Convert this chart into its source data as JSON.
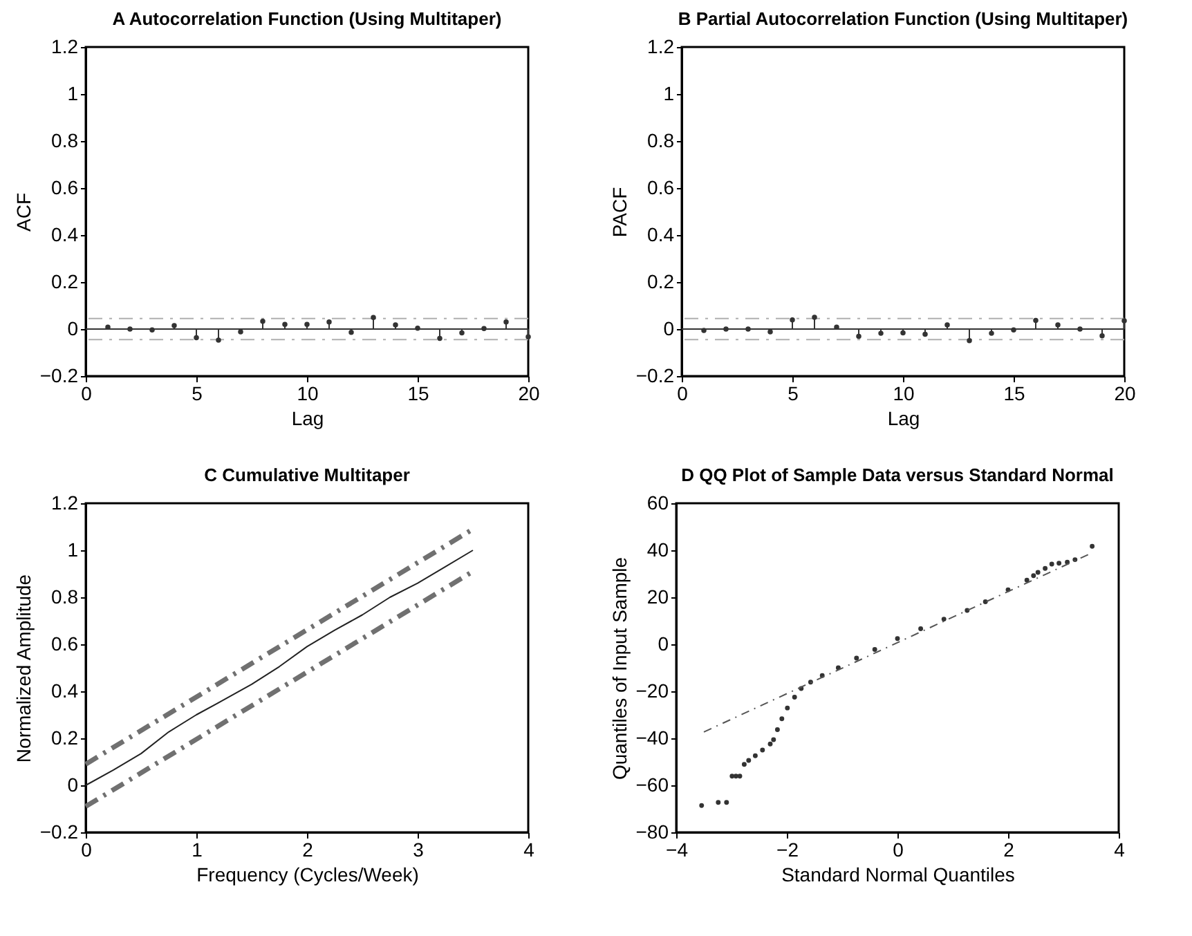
{
  "chart_data": [
    {
      "type": "lollipop",
      "title": "A  Autocorrelation Function (Using Multitaper)",
      "xlabel": "Lag",
      "ylabel": "ACF",
      "x": [
        1,
        2,
        3,
        4,
        5,
        6,
        7,
        8,
        9,
        10,
        11,
        12,
        13,
        14,
        15,
        16,
        17,
        18,
        19,
        20
      ],
      "series": [
        {
          "color": "#333333",
          "values": [
            0.008,
            0,
            -0.004,
            0.015,
            -0.037,
            -0.047,
            -0.012,
            0.033,
            0.02,
            0.02,
            0.03,
            -0.014,
            0.049,
            0.018,
            0.004,
            -0.04,
            -0.016,
            0.002,
            0.03,
            -0.033
          ]
        }
      ],
      "marker": "circle",
      "xlim": [
        0,
        20
      ],
      "xticks": [
        0,
        5,
        10,
        15,
        20
      ],
      "ylim": [
        -0.2,
        1.2
      ],
      "yticks": [
        -0.2,
        0,
        0.2,
        0.4,
        0.6,
        0.8,
        1,
        1.2
      ],
      "ref_lines": [
        {
          "axis": "y",
          "value": 0,
          "color": "#333333",
          "line_style": "solid"
        },
        {
          "axis": "y",
          "value": 0.045,
          "color": "#b0b0b0",
          "line_style": "dashed"
        },
        {
          "axis": "y",
          "value": -0.045,
          "color": "#b0b0b0",
          "line_style": "dashed"
        }
      ]
    },
    {
      "type": "lollipop",
      "title": "B  Partial Autocorrelation Function (Using Multitaper)",
      "xlabel": "Lag",
      "ylabel": "PACF",
      "x": [
        1,
        2,
        3,
        4,
        5,
        6,
        7,
        8,
        9,
        10,
        11,
        12,
        13,
        14,
        15,
        16,
        17,
        18,
        19,
        20
      ],
      "series": [
        {
          "color": "#333333",
          "values": [
            -0.006,
            0,
            0,
            -0.012,
            0.039,
            0.05,
            0.008,
            -0.031,
            -0.018,
            -0.016,
            -0.022,
            0.018,
            -0.049,
            -0.018,
            -0.004,
            0.037,
            0.018,
            0,
            -0.029,
            0.035
          ]
        }
      ],
      "marker": "circle",
      "xlim": [
        0,
        20
      ],
      "xticks": [
        0,
        5,
        10,
        15,
        20
      ],
      "ylim": [
        -0.2,
        1.2
      ],
      "yticks": [
        -0.2,
        0,
        0.2,
        0.4,
        0.6,
        0.8,
        1,
        1.2
      ],
      "ref_lines": [
        {
          "axis": "y",
          "value": 0,
          "color": "#333333",
          "line_style": "solid"
        },
        {
          "axis": "y",
          "value": 0.045,
          "color": "#b0b0b0",
          "line_style": "dashed"
        },
        {
          "axis": "y",
          "value": -0.045,
          "color": "#b0b0b0",
          "line_style": "dashed"
        }
      ]
    },
    {
      "type": "line",
      "title": "C  Cumulative Multitaper",
      "xlabel": "Frequency (Cycles/Week)",
      "ylabel": "Normalized Amplitude",
      "series": [
        {
          "color": "#222222",
          "line_style": "solid",
          "x": [
            0,
            0.25,
            0.5,
            0.75,
            1,
            1.25,
            1.5,
            1.75,
            2,
            2.25,
            2.5,
            2.75,
            3,
            3.25,
            3.5
          ],
          "values": [
            0,
            0.065,
            0.135,
            0.227,
            0.3,
            0.364,
            0.43,
            0.505,
            0.59,
            0.66,
            0.725,
            0.8,
            0.86,
            0.93,
            1
          ]
        },
        {
          "color": "#707070",
          "line_style": "dashed",
          "x": [
            0,
            3.5
          ],
          "values": [
            0.09,
            1.09
          ]
        },
        {
          "color": "#707070",
          "line_style": "dashed",
          "x": [
            0,
            3.5
          ],
          "values": [
            -0.09,
            0.91
          ]
        }
      ],
      "xlim": [
        0,
        4
      ],
      "xticks": [
        0,
        1,
        2,
        3,
        4
      ],
      "ylim": [
        -0.2,
        1.2
      ],
      "yticks": [
        -0.2,
        0,
        0.2,
        0.4,
        0.6,
        0.8,
        1,
        1.2
      ]
    },
    {
      "type": "scatter",
      "title": "D QQ Plot of Sample Data versus Standard Normal",
      "xlabel": "Standard Normal Quantiles",
      "ylabel": "Quantiles of Input Sample",
      "series": [
        {
          "color": "#333333",
          "marker": "circle",
          "x": [
            -3.54,
            -3.24,
            -3.09,
            -2.99,
            -2.92,
            -2.85,
            -2.77,
            -2.69,
            -2.57,
            -2.44,
            -2.3,
            -2.24,
            -2.17,
            -2.09,
            -1.99,
            -1.86,
            -1.74,
            -1.57,
            -1.36,
            -1.07,
            -0.74,
            -0.41,
            0,
            0.42,
            0.84,
            1.26,
            1.59,
            2,
            2.34,
            2.46,
            2.54,
            2.67,
            2.79,
            2.92,
            3.07,
            3.21,
            3.52
          ],
          "values": [
            -68.6,
            -67.3,
            -67.3,
            -56.1,
            -56.1,
            -56.1,
            -51.1,
            -49.4,
            -47.4,
            -45,
            -42.4,
            -40.6,
            -36.3,
            -31.7,
            -27.1,
            -22.5,
            -18.8,
            -16.1,
            -13.3,
            -10,
            -5.9,
            -2.2,
            2.4,
            6.6,
            10.7,
            14.4,
            18.1,
            23.2,
            27.3,
            29.2,
            30.6,
            32.3,
            34.1,
            34.5,
            34.9,
            36,
            41.7
          ]
        },
        {
          "type": "line",
          "color": "#555555",
          "line_style": "dotted",
          "x": [
            -3.5,
            3.5
          ],
          "values": [
            -37.3,
            38.7
          ]
        }
      ],
      "xlim": [
        -4,
        4
      ],
      "xticks": [
        -4,
        -2,
        0,
        2,
        4
      ],
      "ylim": [
        -80,
        60
      ],
      "yticks": [
        -80,
        -60,
        -40,
        -20,
        0,
        20,
        40,
        60
      ]
    }
  ]
}
